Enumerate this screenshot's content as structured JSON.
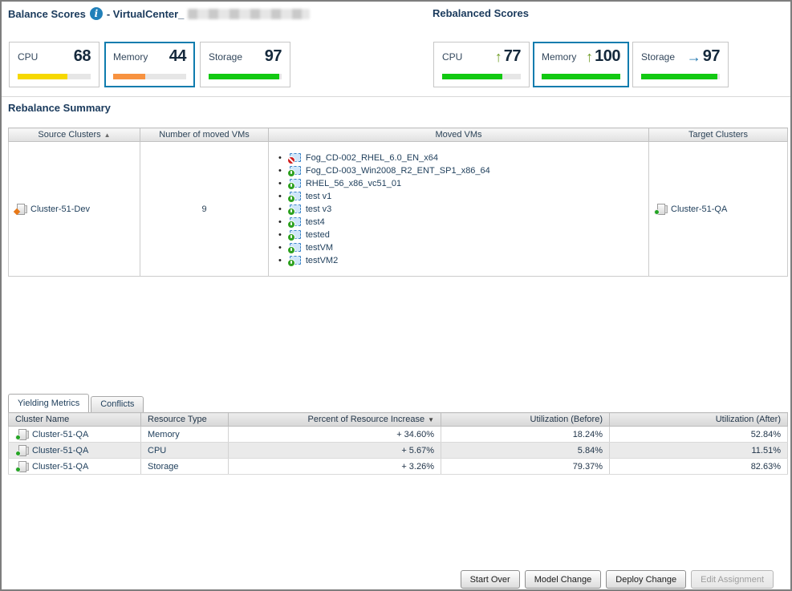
{
  "header": {
    "balance_title": "Balance Scores",
    "balance_subtitle": "- VirtualCenter_",
    "rebalanced_title": "Rebalanced Scores",
    "summary_heading": "Rebalance Summary"
  },
  "icons": {
    "info": "info-icon",
    "trend_up_glyph": "↑",
    "trend_right_glyph": "→",
    "sort_asc_glyph": "▲",
    "sort_desc_glyph": "▼"
  },
  "colors": {
    "accent_selected_border": "#0e7cae",
    "bar_yellow": "#f6d800",
    "bar_orange": "#f79240",
    "bar_green": "#12c912",
    "trend_up_green": "#6f9c23",
    "trend_right_blue": "#1c74ad",
    "title_navy": "#1a3a5c"
  },
  "balance_scores": {
    "cards": [
      {
        "label": "CPU",
        "value": "68",
        "bar_pct": 68,
        "bar_color": "#f6d800",
        "selected": false
      },
      {
        "label": "Memory",
        "value": "44",
        "bar_pct": 44,
        "bar_color": "#f79240",
        "selected": true
      },
      {
        "label": "Storage",
        "value": "97",
        "bar_pct": 97,
        "bar_color": "#12c912",
        "selected": false
      }
    ]
  },
  "rebalanced_scores": {
    "cards": [
      {
        "label": "CPU",
        "trend": "up",
        "value": "77",
        "bar_pct": 77,
        "bar_color": "#12c912",
        "selected": false
      },
      {
        "label": "Memory",
        "trend": "up",
        "value": "100",
        "bar_pct": 100,
        "bar_color": "#12c912",
        "selected": true
      },
      {
        "label": "Storage",
        "trend": "right",
        "value": "97",
        "bar_pct": 97,
        "bar_color": "#12c912",
        "selected": false
      }
    ]
  },
  "summary_table": {
    "headers": [
      "Source Clusters",
      "Number of moved VMs",
      "Moved VMs",
      "Target Clusters"
    ],
    "sort_column": "Source Clusters",
    "sort_direction": "ascending",
    "row": {
      "source_cluster": "Cluster-51-Dev",
      "moved_count": "9",
      "moved_vms": [
        {
          "name": "Fog_CD-002_RHEL_6.0_EN_x64",
          "power": "off"
        },
        {
          "name": "Fog_CD-003_Win2008_R2_ENT_SP1_x86_64",
          "power": "on"
        },
        {
          "name": "RHEL_56_x86_vc51_01",
          "power": "on"
        },
        {
          "name": "test v1",
          "power": "on"
        },
        {
          "name": "test v3",
          "power": "on"
        },
        {
          "name": "test4",
          "power": "on"
        },
        {
          "name": "tested",
          "power": "on"
        },
        {
          "name": "testVM",
          "power": "on"
        },
        {
          "name": "testVM2",
          "power": "on"
        }
      ],
      "target_cluster": "Cluster-51-QA"
    }
  },
  "tabs": [
    {
      "label": "Yielding Metrics",
      "active": true
    },
    {
      "label": "Conflicts",
      "active": false
    }
  ],
  "metrics_table": {
    "headers": [
      "Cluster Name",
      "Resource Type",
      "Percent of Resource Increase",
      "Utilization (Before)",
      "Utilization (After)"
    ],
    "sort_column": "Percent of Resource Increase",
    "sort_direction": "descending",
    "rows": [
      {
        "cluster": "Cluster-51-QA",
        "resource": "Memory",
        "increase": "+ 34.60%",
        "before": "18.24%",
        "after": "52.84%"
      },
      {
        "cluster": "Cluster-51-QA",
        "resource": "CPU",
        "increase": "+ 5.67%",
        "before": "5.84%",
        "after": "11.51%"
      },
      {
        "cluster": "Cluster-51-QA",
        "resource": "Storage",
        "increase": "+ 3.26%",
        "before": "79.37%",
        "after": "82.63%"
      }
    ]
  },
  "buttons": [
    {
      "label": "Start Over",
      "enabled": true
    },
    {
      "label": "Model Change",
      "enabled": true
    },
    {
      "label": "Deploy Change",
      "enabled": true
    },
    {
      "label": "Edit Assignment",
      "enabled": false
    }
  ]
}
